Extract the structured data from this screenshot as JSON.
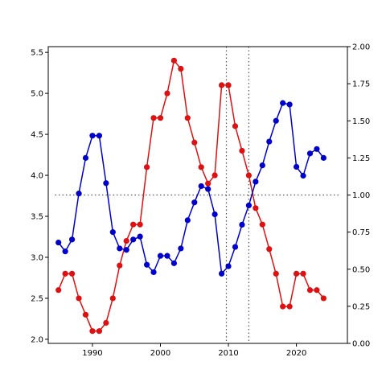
{
  "chart_data": {
    "type": "line",
    "title": "",
    "xlabel": "",
    "ylabel_left": "",
    "ylabel_right": "",
    "xlim": [
      1983.5,
      2027.5
    ],
    "ylim_left": [
      1.95,
      5.57
    ],
    "ylim_right": [
      0.0,
      2.0
    ],
    "x_ticks": [
      1990,
      2000,
      2010,
      2020
    ],
    "y_ticks_left": [
      "2.0",
      "2.5",
      "3.0",
      "3.5",
      "4.0",
      "4.5",
      "5.0",
      "5.5"
    ],
    "y_ticks_right": [
      "0.00",
      "0.25",
      "0.50",
      "0.75",
      "1.00",
      "1.25",
      "1.50",
      "1.75",
      "2.00"
    ],
    "grid": false,
    "reference_lines": {
      "vertical_x": [
        2009.7,
        2013.0
      ],
      "horizontal_y_left": 3.76
    },
    "series": [
      {
        "axis": "left",
        "color": "#dd1111",
        "x": [
          1985,
          1986,
          1987,
          1988,
          1989,
          1990,
          1991,
          1992,
          1993,
          1994,
          1995,
          1996,
          1997,
          1998,
          1999,
          2000,
          2001,
          2002,
          2003,
          2004,
          2005,
          2006,
          2007,
          2008,
          2009,
          2010,
          2011,
          2012,
          2013,
          2014,
          2015,
          2016,
          2017,
          2018,
          2019,
          2020,
          2021,
          2022,
          2023,
          2024
        ],
        "values": [
          2.6,
          2.8,
          2.8,
          2.5,
          2.3,
          2.1,
          2.1,
          2.2,
          2.5,
          2.9,
          3.2,
          3.4,
          3.4,
          4.1,
          4.7,
          4.7,
          5.0,
          5.4,
          5.3,
          4.7,
          4.4,
          4.1,
          3.9,
          4.0,
          5.1,
          5.1,
          4.6,
          4.3,
          4.0,
          3.6,
          3.4,
          3.1,
          2.8,
          2.4,
          2.4,
          2.8,
          2.8,
          2.6,
          2.6,
          2.5
        ]
      },
      {
        "axis": "right",
        "color": "#0000cc",
        "x": [
          1985,
          1986,
          1987,
          1988,
          1989,
          1990,
          1991,
          1992,
          1993,
          1994,
          1995,
          1996,
          1997,
          1998,
          1999,
          2000,
          2001,
          2002,
          2003,
          2004,
          2005,
          2006,
          2007,
          2008,
          2009,
          2010,
          2011,
          2012,
          2013,
          2014,
          2015,
          2016,
          2017,
          2018,
          2019,
          2020,
          2021,
          2022,
          2023,
          2024
        ],
        "values": [
          0.68,
          0.62,
          0.7,
          1.01,
          1.25,
          1.4,
          1.4,
          1.08,
          0.75,
          0.64,
          0.63,
          0.7,
          0.72,
          0.53,
          0.48,
          0.59,
          0.59,
          0.54,
          0.64,
          0.83,
          0.95,
          1.06,
          1.04,
          0.87,
          0.47,
          0.52,
          0.65,
          0.8,
          0.93,
          1.09,
          1.2,
          1.36,
          1.5,
          1.62,
          1.61,
          1.19,
          1.13,
          1.28,
          1.31,
          1.25
        ]
      }
    ]
  }
}
